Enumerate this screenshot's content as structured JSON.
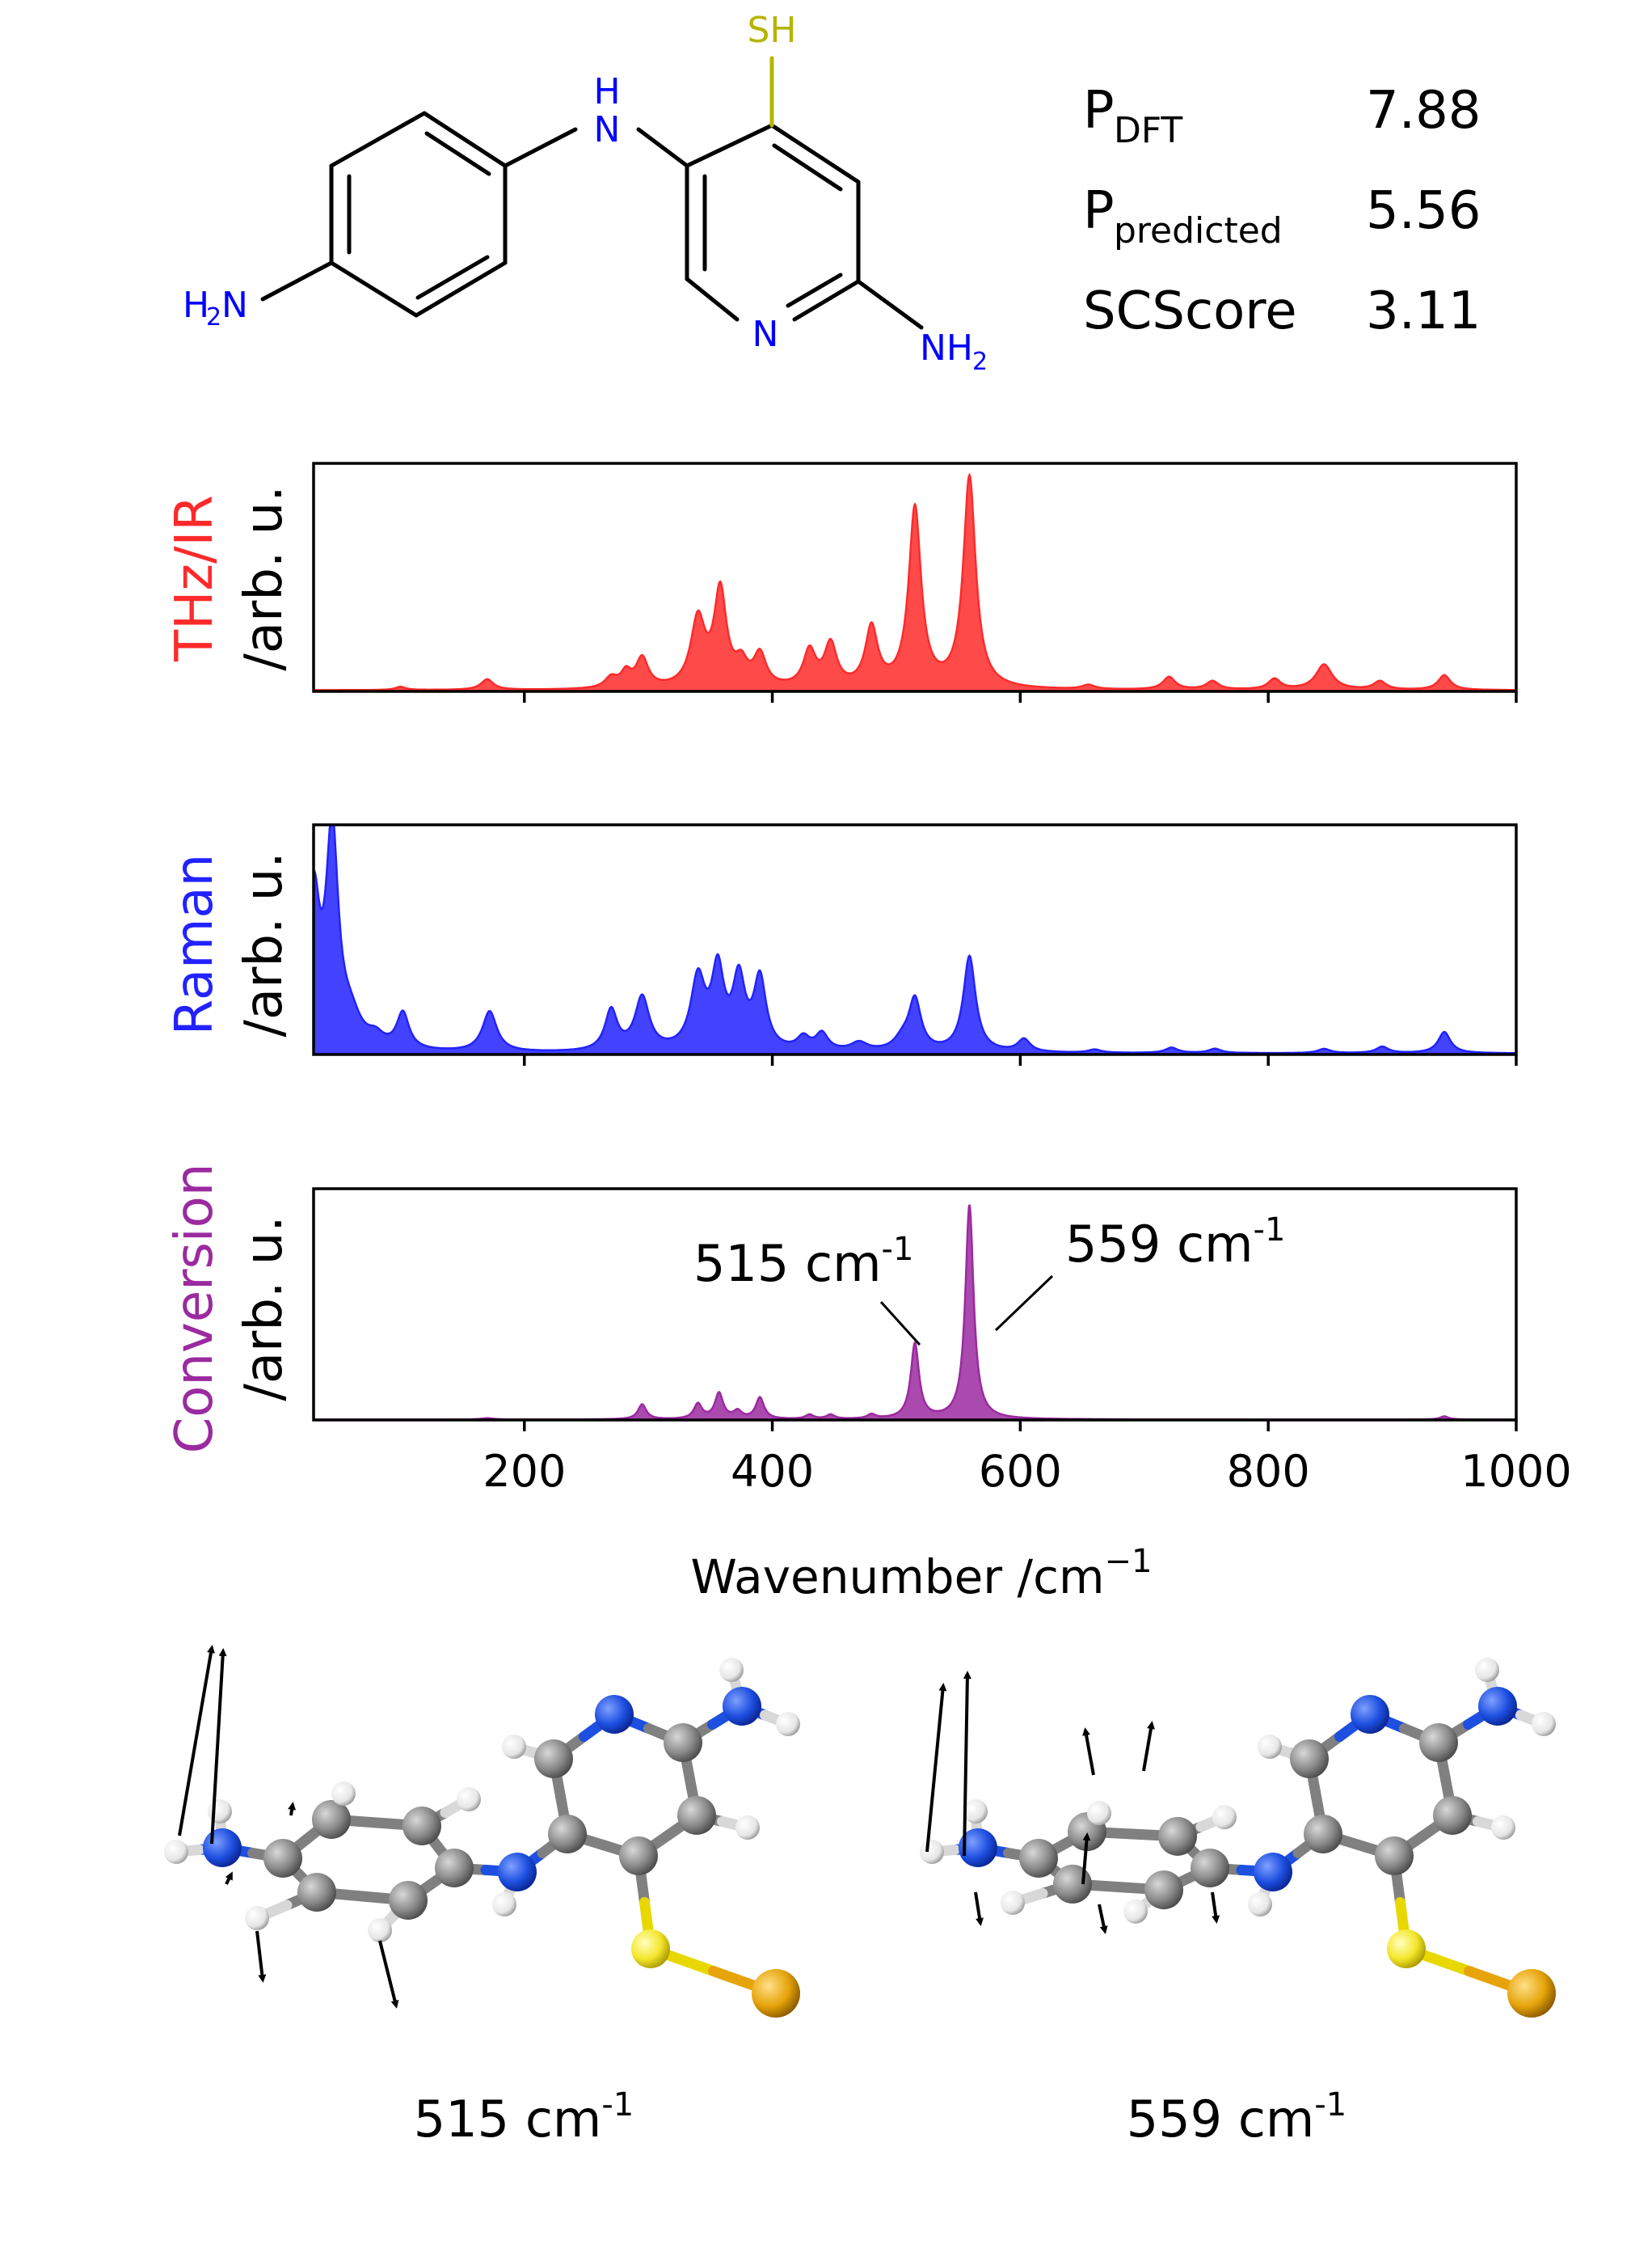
{
  "molecule": {
    "atoms": {
      "sh": "SH",
      "nh_h": "H",
      "nh_n": "N",
      "amine_left_h": "H",
      "amine_left_sub": "2",
      "amine_left_n": "N",
      "ring_n": "N",
      "amine_right_n": "NH",
      "amine_right_sub": "2"
    },
    "colors": {
      "nitrogen": "#0000ff",
      "sulfur": "#b5b500",
      "bond": "#000000"
    }
  },
  "scores": [
    {
      "main": "P",
      "sub": "DFT",
      "value": "7.88"
    },
    {
      "main": "P",
      "sub": "predicted",
      "value": "5.56"
    },
    {
      "main": "SCScore",
      "sub": "",
      "value": "3.11"
    }
  ],
  "chart_data": [
    {
      "type": "area",
      "ylabel": "THz/IR",
      "ylabel_unit": "/arb. u.",
      "color": "#ff2a2a",
      "xlim": [
        30,
        1000
      ],
      "ylim": [
        0,
        1.08
      ],
      "baseline": 0.005,
      "peaks": [
        [
          100,
          0.015,
          5
        ],
        [
          170,
          0.05,
          6
        ],
        [
          270,
          0.05,
          6
        ],
        [
          282,
          0.07,
          5
        ],
        [
          295,
          0.14,
          6
        ],
        [
          340,
          0.32,
          7
        ],
        [
          358,
          0.45,
          6
        ],
        [
          375,
          0.1,
          6
        ],
        [
          390,
          0.15,
          6
        ],
        [
          430,
          0.17,
          6
        ],
        [
          447,
          0.2,
          6
        ],
        [
          480,
          0.28,
          6
        ],
        [
          515,
          0.85,
          6
        ],
        [
          559,
          1.0,
          6
        ],
        [
          655,
          0.02,
          6
        ],
        [
          720,
          0.06,
          6
        ],
        [
          755,
          0.04,
          6
        ],
        [
          805,
          0.05,
          6
        ],
        [
          845,
          0.12,
          8
        ],
        [
          890,
          0.04,
          6
        ],
        [
          942,
          0.07,
          6
        ]
      ]
    },
    {
      "type": "area",
      "ylabel": "Raman",
      "ylabel_unit": "/arb. u.",
      "color": "#2222ff",
      "xlim": [
        30,
        1000
      ],
      "ylim": [
        0,
        1.08
      ],
      "baseline": 0.005,
      "peaks": [
        [
          30,
          0.7,
          6
        ],
        [
          45,
          1.0,
          6
        ],
        [
          60,
          0.12,
          10
        ],
        [
          80,
          0.05,
          8
        ],
        [
          102,
          0.17,
          6
        ],
        [
          172,
          0.19,
          7
        ],
        [
          270,
          0.19,
          6
        ],
        [
          295,
          0.25,
          7
        ],
        [
          340,
          0.33,
          7
        ],
        [
          356,
          0.36,
          6
        ],
        [
          373,
          0.32,
          6
        ],
        [
          390,
          0.33,
          6
        ],
        [
          425,
          0.06,
          6
        ],
        [
          440,
          0.08,
          6
        ],
        [
          470,
          0.04,
          8
        ],
        [
          505,
          0.05,
          8
        ],
        [
          515,
          0.24,
          6
        ],
        [
          559,
          0.45,
          6
        ],
        [
          603,
          0.06,
          6
        ],
        [
          660,
          0.015,
          6
        ],
        [
          722,
          0.025,
          6
        ],
        [
          757,
          0.02,
          6
        ],
        [
          845,
          0.02,
          6
        ],
        [
          892,
          0.03,
          6
        ],
        [
          942,
          0.1,
          6
        ]
      ]
    },
    {
      "type": "area",
      "ylabel": "Conversion",
      "ylabel_unit": "/arb. u.",
      "color": "#9b2aa0",
      "xlim": [
        30,
        1000
      ],
      "ylim": [
        0,
        1.08
      ],
      "baseline": 0.002,
      "peaks": [
        [
          170,
          0.006,
          6
        ],
        [
          295,
          0.07,
          4
        ],
        [
          340,
          0.07,
          4
        ],
        [
          357,
          0.12,
          4
        ],
        [
          372,
          0.035,
          4
        ],
        [
          390,
          0.1,
          4
        ],
        [
          430,
          0.02,
          4
        ],
        [
          447,
          0.02,
          4
        ],
        [
          480,
          0.02,
          4
        ],
        [
          515,
          0.35,
          4
        ],
        [
          559,
          1.0,
          4
        ],
        [
          942,
          0.015,
          4
        ]
      ],
      "xticks": [
        200,
        400,
        600,
        800,
        1000
      ],
      "xlabel": "Wavenumber /cm",
      "xlabel_sup": "−1",
      "annotations": [
        {
          "text": "515 cm",
          "sup": "-1",
          "x": 515
        },
        {
          "text": "559 cm",
          "sup": "-1",
          "x": 559
        }
      ]
    }
  ],
  "modes": [
    {
      "label": "515 cm",
      "sup": "-1"
    },
    {
      "label": "559 cm",
      "sup": "-1"
    }
  ],
  "mode_colors": {
    "carbon": "#8a8a8a",
    "hydrogen": "#f2f2f2",
    "nitrogen": "#1d4fe0",
    "sulfur": "#f4e62a",
    "gold": "#e6a40a"
  }
}
